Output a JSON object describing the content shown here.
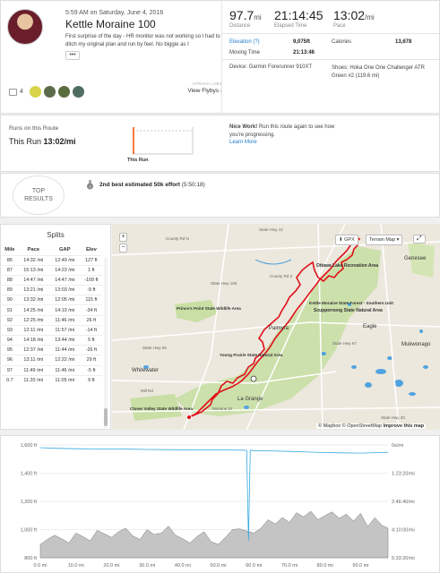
{
  "activity": {
    "datetime": "5:59 AM on Saturday, June 4, 2016",
    "title": "Kettle Moraine 100",
    "description": "First surprise of the day - HR monitor was not working so I had to ditch my original plan and run by feel. No biggie as I",
    "more_label": "•••",
    "kudos_count": "4",
    "flyby_label": "STRAVA LABS",
    "flyby_link": "View Flybys"
  },
  "stats": {
    "distance": {
      "value": "97.7",
      "unit": "mi",
      "caption": "Distance"
    },
    "elapsed": {
      "value": "21:14:45",
      "caption": "Elapsed Time"
    },
    "pace": {
      "value": "13:02",
      "unit": "/mi",
      "caption": "Pace"
    },
    "elevation_label": "Elevation (?)",
    "elevation_value": "9,075ft",
    "calories_label": "Calories",
    "calories_value": "13,678",
    "moving_label": "Moving Time",
    "moving_value": "21:13:46",
    "device": "Device: Garmin Forerunner 910XT",
    "shoes": "Shoes: Hoka One One Challenger ATR Green #2 (119.6 mi)"
  },
  "route": {
    "label": "Runs on this Route",
    "this_run_label": "This Run",
    "this_run_value": "13:02/mi",
    "bar_label": "This Run",
    "nice_bold": "Nice Work!",
    "nice_text": " Run this route again to see how you're progressing.",
    "learn_more": "Learn More"
  },
  "top_results": {
    "badge_line1": "TOP",
    "badge_line2": "RESULTS",
    "effort_bold": "2nd best estimated 50k effort",
    "effort_time": " (5:50:18)"
  },
  "splits": {
    "title": "Splits",
    "headers": [
      "Mile",
      "Pace",
      "GAP",
      "Elev"
    ],
    "rows": [
      [
        "86",
        "14:32 /mi",
        "12:49 /mi",
        "127 ft"
      ],
      [
        "87",
        "15:13 /mi",
        "14:23 /mi",
        "1 ft"
      ],
      [
        "88",
        "14:47 /mi",
        "14:47 /mi",
        "-109 ft"
      ],
      [
        "89",
        "13:21 /mi",
        "13:03 /mi",
        "-9 ft"
      ],
      [
        "90",
        "13:32 /mi",
        "12:05 /mi",
        "115 ft"
      ],
      [
        "91",
        "14:25 /mi",
        "14:19 /mi",
        "-34 ft"
      ],
      [
        "92",
        "12:25 /mi",
        "11:46 /mi",
        "26 ft"
      ],
      [
        "93",
        "12:11 /mi",
        "11:57 /mi",
        "-14 ft"
      ],
      [
        "94",
        "14:18 /mi",
        "13:44 /mi",
        "5 ft"
      ],
      [
        "95",
        "12:37 /mi",
        "11:44 /mi",
        "-26 ft"
      ],
      [
        "96",
        "13:11 /mi",
        "12:22 /mi",
        "29 ft"
      ],
      [
        "97",
        "11:49 /mi",
        "11:46 /mi",
        "-5 ft"
      ],
      [
        "0.7",
        "11:20 /mi",
        "11:05 /mi",
        "9 ft"
      ]
    ]
  },
  "map": {
    "gpx_label": "GPX",
    "terrain_label": "Terrain Map",
    "zoom_in": "+",
    "zoom_out": "−",
    "fullscreen": "⤢",
    "attribution_prefix": "© Mapbox © OpenStreetMap ",
    "attribution_link": "Improve this map",
    "labels": [
      "Ottawa Lake Recreation Area",
      "Kettle Moraine State Forest - Southern Unit",
      "Scuppernong State Natural Area",
      "Prince's Point State Wildlife Area",
      "Young Prairie State Natural Area",
      "Clover Valley State Wildlife Area",
      "Whitewater",
      "Palmyra",
      "La Grange",
      "Genesee",
      "Mukwonago",
      "Eagle",
      "County Rd N",
      "County Rd Z",
      "State Hwy 59",
      "State Hwy 67",
      "State Hwy 20",
      "State Hwy 106",
      "Mill Rd",
      "State Hwy 12",
      "Moraine Dr"
    ],
    "colors": {
      "route": "#e0101a",
      "forest": "#c9dfa5",
      "water": "#4fa3e0",
      "land": "#ece8dd"
    }
  },
  "chart_data": {
    "type": "area",
    "title": "",
    "xlabel": "",
    "ylabel": "",
    "x_ticks": [
      "0.0 mi",
      "10.0 mi",
      "20.0 mi",
      "30.0 mi",
      "40.0 mi",
      "50.0 mi",
      "60.0 mi",
      "70.0 mi",
      "80.0 mi",
      "90.0 mi"
    ],
    "y_left_ticks": [
      "800 ft",
      "1,000 ft",
      "1,200 ft",
      "1,400 ft",
      "1,600 ft"
    ],
    "y_right_ticks": [
      "0s/mi",
      "1:23:20/mi",
      "2:46:40/mi",
      "4:10:00/mi",
      "5:33:20/mi"
    ],
    "xlim": [
      0,
      97.7
    ],
    "ylim_ft": [
      800,
      1600
    ],
    "pace_lim_s": [
      0,
      20000
    ],
    "elevation": {
      "name": "Elevation",
      "x": [
        0,
        2,
        4,
        6,
        8,
        10,
        12,
        14,
        16,
        18,
        20,
        22,
        24,
        26,
        28,
        30,
        32,
        34,
        36,
        38,
        40,
        42,
        44,
        46,
        48,
        50,
        52,
        54,
        56,
        58,
        60,
        62,
        64,
        66,
        68,
        70,
        72,
        74,
        76,
        78,
        80,
        82,
        84,
        86,
        88,
        90,
        92,
        94,
        96,
        97.7
      ],
      "y": [
        895,
        930,
        960,
        935,
        905,
        975,
        950,
        920,
        995,
        970,
        945,
        985,
        1010,
        955,
        930,
        1000,
        965,
        975,
        1025,
        960,
        935,
        905,
        950,
        985,
        915,
        895,
        945,
        1000,
        1005,
        990,
        975,
        1010,
        1070,
        1040,
        1085,
        1050,
        1120,
        1090,
        1130,
        1070,
        1100,
        1125,
        1080,
        1110,
        1060,
        1115,
        1020,
        1085,
        1030,
        1010
      ]
    },
    "pace": {
      "name": "Pace",
      "x": [
        0,
        5,
        10,
        15,
        20,
        25,
        30,
        35,
        40,
        45,
        50,
        55,
        58,
        58.5,
        59,
        60,
        65,
        70,
        75,
        80,
        85,
        90,
        95,
        97.7
      ],
      "y": [
        480,
        600,
        660,
        700,
        720,
        750,
        800,
        830,
        840,
        860,
        880,
        900,
        950,
        17000,
        900,
        1000,
        1050,
        1150,
        1250,
        1350,
        1400,
        1450,
        1350,
        1300
      ]
    },
    "colors": {
      "area": "#c4c4c4",
      "area_line": "#7a7a7a",
      "pace": "#35a9e0"
    }
  }
}
